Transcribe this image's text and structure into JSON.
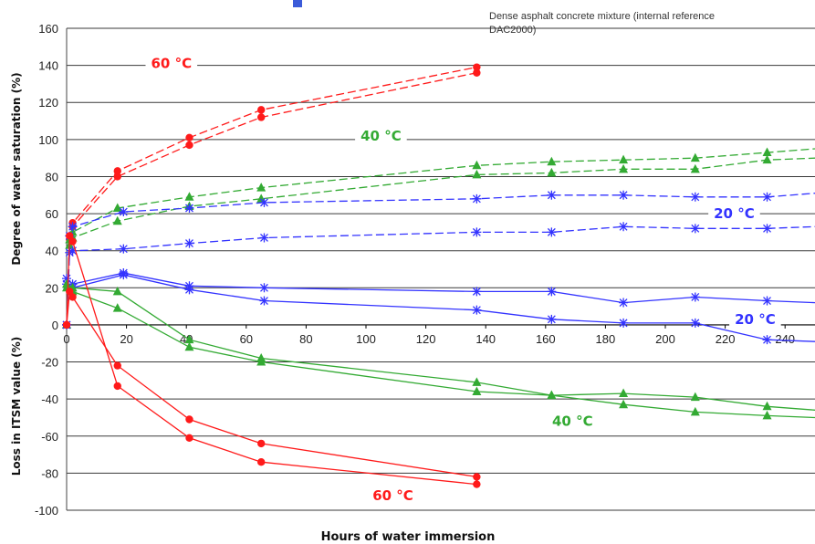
{
  "chart_data": {
    "type": "line",
    "xlabel": "Hours of water immersion",
    "ylabel_top": "Degree of water saturation (%)",
    "ylabel_bottom": "Loss in ITSM value (%)",
    "note": [
      "Dense asphalt concrete mixture (internal reference",
      "DAC2000)"
    ],
    "xlim": [
      0,
      250
    ],
    "ylim": [
      -100,
      160
    ],
    "x_ticks": [
      0,
      20,
      40,
      60,
      80,
      100,
      120,
      140,
      160,
      180,
      200,
      220,
      240
    ],
    "y_ticks": [
      -100,
      -80,
      -60,
      -40,
      -20,
      0,
      20,
      40,
      60,
      80,
      100,
      120,
      140,
      160
    ],
    "grid": "horizontal",
    "colors": {
      "60C": "#ff1a1a",
      "40C": "#33aa33",
      "20C": "#3333ff"
    },
    "annotations": [
      {
        "text": "60 °C",
        "color": "#ff1a1a",
        "x": 35,
        "y": 141
      },
      {
        "text": "40 °C",
        "color": "#33aa33",
        "x": 105,
        "y": 102
      },
      {
        "text": "20 °C",
        "color": "#3333ff",
        "x": 223,
        "y": 60
      },
      {
        "text": "20 °C",
        "color": "#3333ff",
        "x": 230,
        "y": 3
      },
      {
        "text": "40 °C",
        "color": "#33aa33",
        "x": 169,
        "y": -52
      },
      {
        "text": "60 °C",
        "color": "#ff1a1a",
        "x": 109,
        "y": -92
      }
    ],
    "series": [
      {
        "group": "saturation",
        "temp": "60C",
        "marker": "circle",
        "dash": true,
        "x": [
          0,
          1,
          2,
          17,
          41,
          65,
          137
        ],
        "y": [
          0,
          48,
          55,
          83,
          101,
          116,
          139
        ]
      },
      {
        "group": "saturation",
        "temp": "60C",
        "marker": "circle",
        "dash": true,
        "x": [
          0,
          1,
          2,
          17,
          41,
          65,
          137
        ],
        "y": [
          0,
          46,
          53,
          80,
          97,
          112,
          136
        ]
      },
      {
        "group": "saturation",
        "temp": "40C",
        "marker": "triangle",
        "dash": true,
        "x": [
          0,
          1,
          2,
          17,
          41,
          65,
          137,
          162,
          186,
          210,
          234,
          250
        ],
        "y": [
          0,
          46,
          50,
          63,
          69,
          74,
          86,
          88,
          89,
          90,
          93,
          95
        ]
      },
      {
        "group": "saturation",
        "temp": "40C",
        "marker": "triangle",
        "dash": true,
        "x": [
          0,
          1,
          2,
          17,
          41,
          65,
          137,
          162,
          186,
          210,
          234,
          250
        ],
        "y": [
          0,
          43,
          47,
          56,
          64,
          68,
          81,
          82,
          84,
          84,
          89,
          90
        ]
      },
      {
        "group": "saturation",
        "temp": "20C",
        "marker": "star",
        "dash": true,
        "x": [
          0,
          1,
          2,
          19,
          41,
          66,
          137,
          162,
          186,
          210,
          234,
          250
        ],
        "y": [
          0,
          48,
          53,
          61,
          63,
          66,
          68,
          70,
          70,
          69,
          69,
          71
        ]
      },
      {
        "group": "saturation",
        "temp": "20C",
        "marker": "star",
        "dash": true,
        "x": [
          0,
          1,
          2,
          19,
          41,
          66,
          137,
          162,
          186,
          210,
          234,
          250
        ],
        "y": [
          0,
          39,
          40,
          41,
          44,
          47,
          50,
          50,
          53,
          52,
          52,
          53
        ]
      },
      {
        "group": "itsm",
        "temp": "20C",
        "marker": "star",
        "dash": false,
        "x": [
          0,
          2,
          19,
          41,
          66,
          137,
          162,
          186,
          210,
          234,
          250
        ],
        "y": [
          25,
          22,
          28,
          21,
          20,
          18,
          18,
          12,
          15,
          13,
          12
        ]
      },
      {
        "group": "itsm",
        "temp": "20C",
        "marker": "star",
        "dash": false,
        "x": [
          0,
          2,
          19,
          41,
          66,
          137,
          162,
          186,
          210,
          234,
          250
        ],
        "y": [
          22,
          20,
          27,
          19,
          13,
          8,
          3,
          1,
          1,
          -8,
          -9
        ]
      },
      {
        "group": "itsm",
        "temp": "40C",
        "marker": "triangle",
        "dash": false,
        "x": [
          0,
          2,
          17,
          41,
          65,
          137,
          162,
          186,
          210,
          234,
          250
        ],
        "y": [
          22,
          20,
          18,
          -8,
          -18,
          -31,
          -38,
          -37,
          -39,
          -44,
          -46
        ]
      },
      {
        "group": "itsm",
        "temp": "40C",
        "marker": "triangle",
        "dash": false,
        "x": [
          0,
          2,
          17,
          41,
          65,
          137,
          162,
          186,
          210,
          234,
          250
        ],
        "y": [
          20,
          18,
          9,
          -12,
          -20,
          -36,
          -38,
          -43,
          -47,
          -49,
          -50
        ]
      },
      {
        "group": "itsm",
        "temp": "60C",
        "marker": "circle",
        "dash": false,
        "x": [
          0,
          1,
          2,
          17,
          41,
          65,
          137
        ],
        "y": [
          0,
          18,
          15,
          -22,
          -51,
          -64,
          -82
        ]
      },
      {
        "group": "itsm",
        "temp": "60C",
        "marker": "circle",
        "dash": false,
        "x": [
          0,
          1,
          2,
          17,
          41,
          65,
          137
        ],
        "y": [
          0,
          48,
          45,
          -33,
          -61,
          -74,
          -86
        ]
      }
    ]
  }
}
